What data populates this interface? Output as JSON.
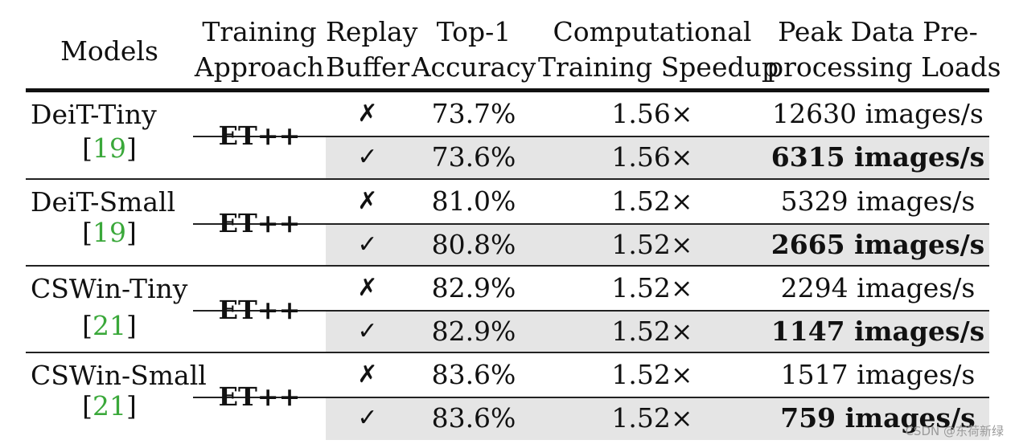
{
  "header": {
    "models": "Models",
    "approach": [
      "Training",
      "Approach"
    ],
    "buffer": [
      "Replay",
      "Buffer"
    ],
    "accuracy": [
      "Top-1",
      "Accuracy"
    ],
    "speedup": [
      "Computational",
      "Training Speedup"
    ],
    "loads": [
      "Peak Data Pre-",
      "processing Loads"
    ]
  },
  "groups": [
    {
      "model": "DeiT-Tiny",
      "ref": "19",
      "approach": "ET++",
      "rows": [
        {
          "buffer": "✗",
          "accuracy": "73.7%",
          "speedup": "1.56×",
          "loads": "12630 images/s"
        },
        {
          "buffer": "✓",
          "accuracy": "73.6%",
          "speedup": "1.56×",
          "loads": "6315 images/s"
        }
      ]
    },
    {
      "model": "DeiT-Small",
      "ref": "19",
      "approach": "ET++",
      "rows": [
        {
          "buffer": "✗",
          "accuracy": "81.0%",
          "speedup": "1.52×",
          "loads": "5329 images/s"
        },
        {
          "buffer": "✓",
          "accuracy": "80.8%",
          "speedup": "1.52×",
          "loads": "2665 images/s"
        }
      ]
    },
    {
      "model": "CSWin-Tiny",
      "ref": "21",
      "approach": "ET++",
      "rows": [
        {
          "buffer": "✗",
          "accuracy": "82.9%",
          "speedup": "1.52×",
          "loads": "2294 images/s"
        },
        {
          "buffer": "✓",
          "accuracy": "82.9%",
          "speedup": "1.52×",
          "loads": "1147 images/s"
        }
      ]
    },
    {
      "model": "CSWin-Small",
      "ref": "21",
      "approach": "ET++",
      "rows": [
        {
          "buffer": "✗",
          "accuracy": "83.6%",
          "speedup": "1.52×",
          "loads": "1517 images/s"
        },
        {
          "buffer": "✓",
          "accuracy": "83.6%",
          "speedup": "1.52×",
          "loads": "759 images/s"
        }
      ]
    }
  ],
  "watermark": "CSDN @东荷新绿"
}
